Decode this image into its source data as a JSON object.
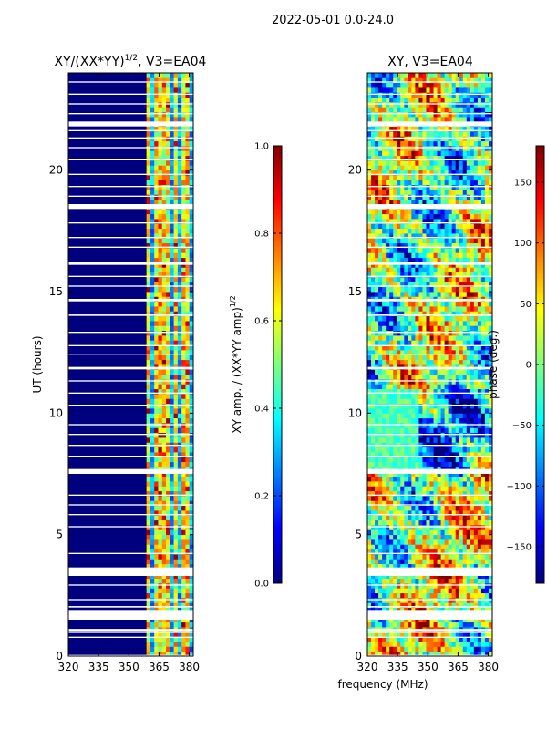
{
  "suptitle": "2022-05-01 0.0-24.0",
  "shared_xlabel": "frequency (MHz)",
  "colors": {
    "jet": [
      "#00007f",
      "#0000ff",
      "#007fff",
      "#00ffff",
      "#7fff7f",
      "#ffff00",
      "#ff7f00",
      "#ff0000",
      "#7f0000"
    ]
  },
  "chart_data": [
    {
      "type": "heatmap",
      "title": "XY/(XX*YY)",
      "title_exponent": "1/2",
      "title_suffix": ", V3=EA04",
      "xlabel": "",
      "ylabel": "UT (hours)",
      "xlim": [
        320,
        382
      ],
      "ylim": [
        0,
        24
      ],
      "xticks": [
        320,
        335,
        350,
        365,
        380
      ],
      "xticklabels": [
        "320",
        "335",
        "350",
        "365",
        "380"
      ],
      "yticks": [
        0,
        5,
        10,
        15,
        20
      ],
      "yticklabels": [
        "0",
        "5",
        "10",
        "15",
        "20"
      ],
      "colorbar": {
        "label": "XY amp. / (XX*YY amp)",
        "label_exponent": "1/2",
        "range": [
          0.0,
          1.0
        ],
        "ticks": [
          0.0,
          0.2,
          0.4,
          0.6,
          0.8,
          1.0
        ],
        "ticklabels": [
          "0.0",
          "0.2",
          "0.4",
          "0.6",
          "0.8",
          "1.0"
        ]
      },
      "bright_bands_x": [
        360,
        364,
        368,
        373,
        378
      ],
      "grid": false
    },
    {
      "type": "heatmap",
      "title": "XY, V3=EA04",
      "xlabel": "frequency (MHz)",
      "ylabel": "",
      "xlim": [
        320,
        382
      ],
      "ylim": [
        0,
        24
      ],
      "xticks": [
        320,
        335,
        350,
        365,
        380
      ],
      "xticklabels": [
        "320",
        "335",
        "350",
        "365",
        "380"
      ],
      "yticks": [
        0,
        5,
        10,
        15,
        20
      ],
      "yticklabels": [
        "0",
        "5",
        "10",
        "15",
        "20"
      ],
      "colorbar": {
        "label": "phase (deg.)",
        "range": [
          -180,
          180
        ],
        "ticks": [
          -150,
          -100,
          -50,
          0,
          50,
          100,
          150
        ],
        "ticklabels": [
          "−150",
          "−100",
          "−50",
          "0",
          "50",
          "100",
          "150"
        ]
      },
      "grid": false
    }
  ],
  "gaps_hours": [
    [
      0.0,
      0.05
    ],
    [
      0.75,
      0.8
    ],
    [
      0.95,
      1.0
    ],
    [
      1.05,
      1.12
    ],
    [
      1.5,
      1.9
    ],
    [
      2.0,
      2.06
    ],
    [
      2.3,
      2.35
    ],
    [
      2.9,
      2.95
    ],
    [
      3.3,
      3.65
    ],
    [
      4.2,
      4.25
    ],
    [
      5.3,
      5.35
    ],
    [
      5.8,
      5.85
    ],
    [
      6.2,
      6.25
    ],
    [
      6.6,
      6.65
    ],
    [
      7.5,
      7.7
    ],
    [
      8.2,
      8.25
    ],
    [
      8.65,
      8.7
    ],
    [
      9.1,
      9.15
    ],
    [
      9.5,
      9.55
    ],
    [
      10.3,
      10.35
    ],
    [
      10.8,
      10.85
    ],
    [
      11.3,
      11.35
    ],
    [
      11.8,
      11.9
    ],
    [
      12.4,
      12.45
    ],
    [
      12.75,
      12.8
    ],
    [
      13.3,
      13.35
    ],
    [
      14.0,
      14.06
    ],
    [
      14.6,
      14.7
    ],
    [
      15.2,
      15.25
    ],
    [
      15.6,
      15.65
    ],
    [
      16.1,
      16.2
    ],
    [
      16.8,
      16.85
    ],
    [
      17.2,
      17.25
    ],
    [
      17.8,
      17.85
    ],
    [
      18.4,
      18.6
    ],
    [
      18.9,
      18.95
    ],
    [
      19.3,
      19.35
    ],
    [
      19.8,
      19.85
    ],
    [
      20.4,
      20.45
    ],
    [
      20.9,
      20.95
    ],
    [
      21.3,
      21.35
    ],
    [
      21.6,
      21.65
    ],
    [
      21.8,
      22.0
    ],
    [
      22.3,
      22.35
    ],
    [
      22.7,
      22.75
    ],
    [
      23.1,
      23.15
    ],
    [
      23.6,
      23.65
    ]
  ]
}
